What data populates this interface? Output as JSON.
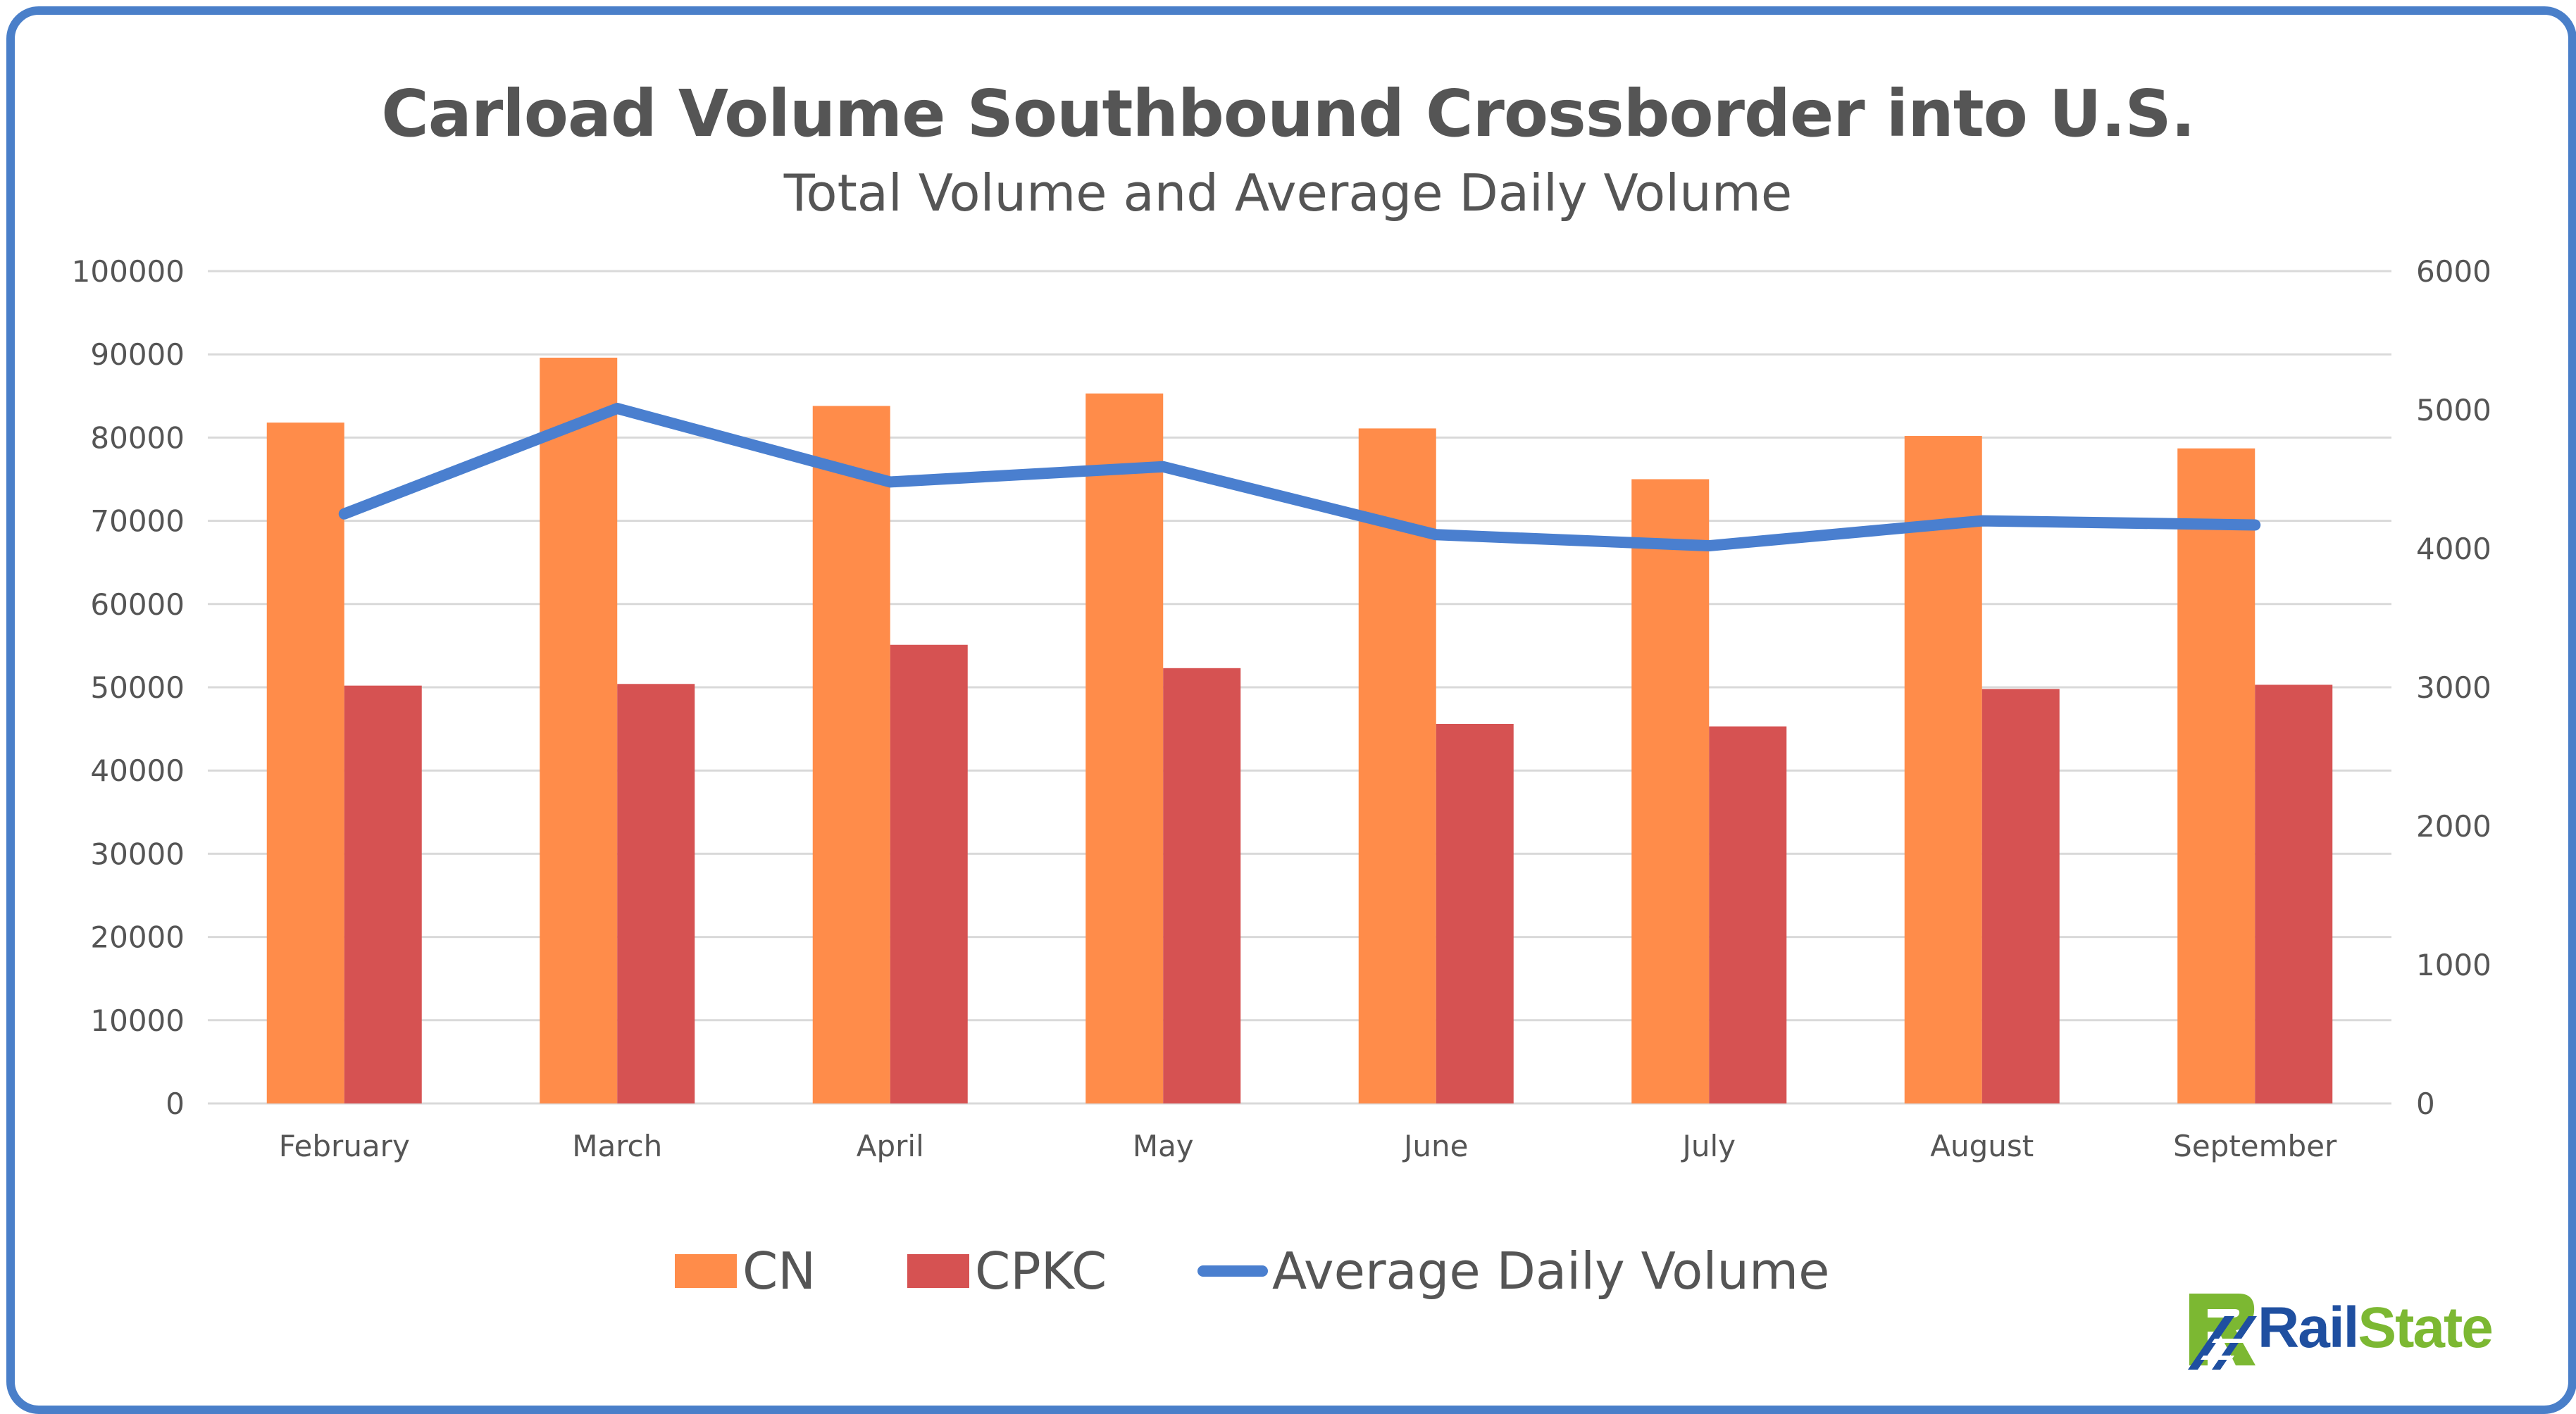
{
  "chart_data": {
    "type": "bar",
    "title": "Carload Volume Southbound Crossborder into U.S.",
    "subtitle": "Total Volume and Average Daily Volume",
    "categories": [
      "February",
      "March",
      "April",
      "May",
      "June",
      "July",
      "August",
      "September"
    ],
    "series": [
      {
        "name": "CN",
        "type": "bar",
        "axis": "left",
        "color": "#ff8c4a",
        "values": [
          81800,
          89600,
          83800,
          85300,
          81100,
          75000,
          80200,
          78700
        ]
      },
      {
        "name": "CPKC",
        "type": "bar",
        "axis": "left",
        "color": "#d65252",
        "values": [
          50200,
          50400,
          55100,
          52300,
          45600,
          45300,
          49800,
          50300
        ]
      },
      {
        "name": "Average Daily Volume",
        "type": "line",
        "axis": "right",
        "color": "#4a7fcf",
        "values": [
          4250,
          5010,
          4480,
          4590,
          4100,
          4020,
          4200,
          4170
        ]
      }
    ],
    "y_left": {
      "range": [
        0,
        100000
      ],
      "ticks": [
        "0",
        "10000",
        "20000",
        "30000",
        "40000",
        "50000",
        "60000",
        "70000",
        "80000",
        "90000",
        "100000"
      ]
    },
    "y_right": {
      "range": [
        0,
        6000
      ],
      "ticks": [
        "0",
        "1000",
        "2000",
        "3000",
        "4000",
        "5000",
        "6000"
      ]
    },
    "grid": true,
    "legend": "bottom-center"
  },
  "logo": {
    "part1": "Rail",
    "part2": "State"
  },
  "colors": {
    "frame": "#4a7fc9",
    "text": "#555555",
    "grid": "#d9d9d9"
  }
}
